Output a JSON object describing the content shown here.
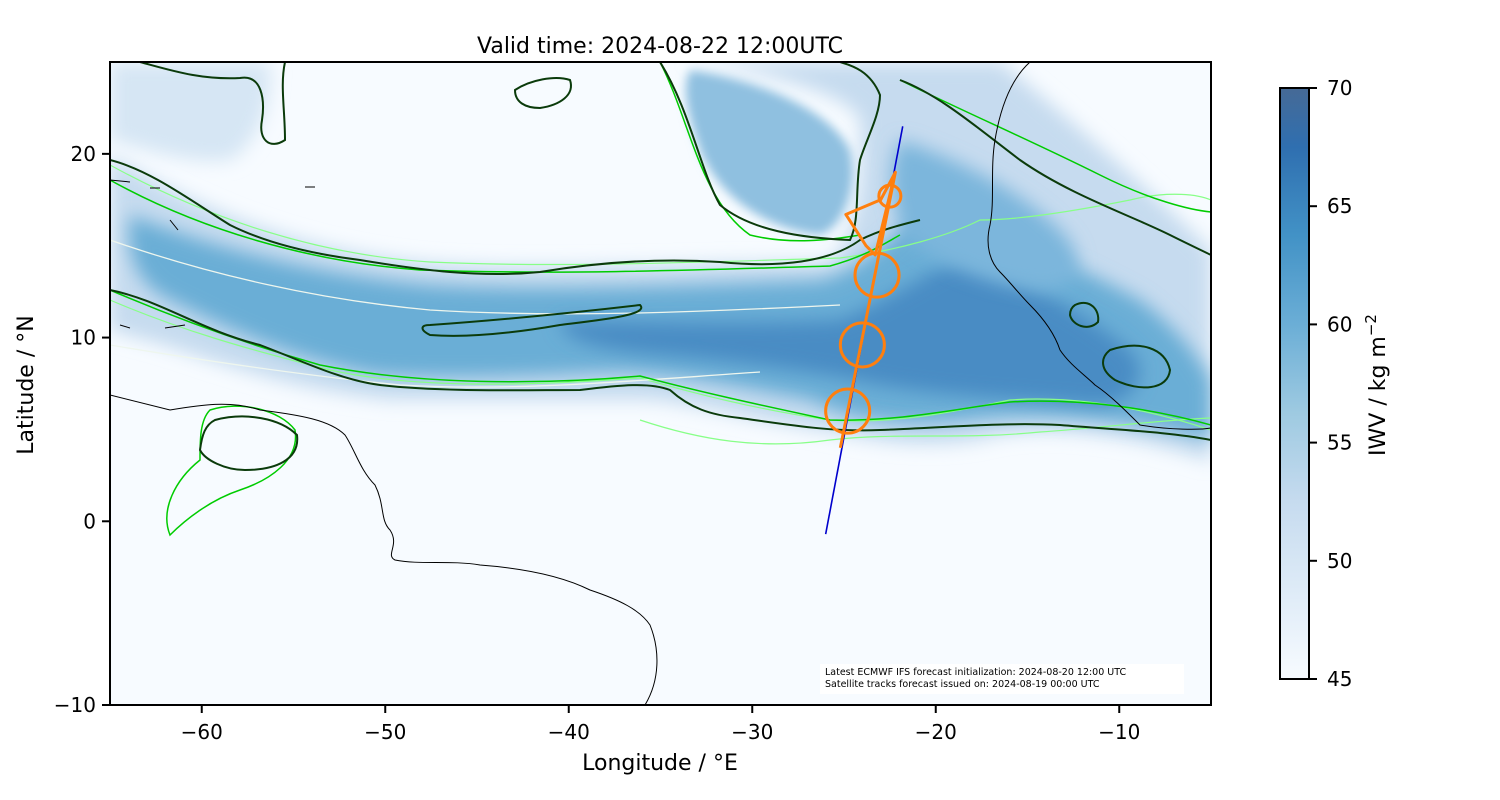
{
  "chart_data": {
    "type": "heatmap",
    "title": "Valid time: 2024-08-22 12:00UTC",
    "xlabel": "Longitude / °E",
    "ylabel": "Latitude / °N",
    "xlim": [
      -65,
      -5
    ],
    "ylim": [
      -10,
      25
    ],
    "x_ticks": [
      -60,
      -50,
      -40,
      -30,
      -20,
      -10
    ],
    "y_ticks": [
      -10,
      0,
      10,
      20
    ],
    "x_tick_labels": [
      "−60",
      "−50",
      "−40",
      "−30",
      "−20",
      "−10"
    ],
    "y_tick_labels": [
      "−10",
      "0",
      "10",
      "20"
    ],
    "grid": false,
    "colorbar": {
      "label": "IWV / kg m",
      "label_exponent": "−2",
      "min": 45,
      "max": 70,
      "ticks": [
        45,
        50,
        55,
        60,
        65,
        70
      ],
      "tick_labels": [
        "45",
        "50",
        "55",
        "60",
        "65",
        "70"
      ],
      "colors": [
        "#f7fbff",
        "#deebf7",
        "#c6dbef",
        "#9ecae1",
        "#6baed6",
        "#4292c6",
        "#2171b5",
        "#08519c"
      ]
    },
    "moisture_band": {
      "centerline": [
        [
          -65,
          17
        ],
        [
          -60,
          15
        ],
        [
          -55,
          13.5
        ],
        [
          -50,
          12.5
        ],
        [
          -45,
          11.5
        ],
        [
          -40,
          11
        ],
        [
          -35,
          10.5
        ],
        [
          -30,
          10
        ],
        [
          -25,
          10
        ],
        [
          -20,
          10.5
        ],
        [
          -15,
          10
        ],
        [
          -10,
          10
        ],
        [
          -5,
          9.5
        ]
      ],
      "peak_iwv": 62
    },
    "flight_track": {
      "color": "#0000cc",
      "points": [
        [
          -26,
          -0.7
        ],
        [
          -21.8,
          21.5
        ]
      ]
    },
    "satellite_track": {
      "color": "#ff7f0e",
      "points": [
        [
          -25.2,
          4
        ],
        [
          -22.2,
          19
        ],
        [
          -23,
          17.5
        ],
        [
          -24.9,
          16.7
        ],
        [
          -23.8,
          15
        ],
        [
          -23.3,
          14.5
        ],
        [
          -22.2,
          19
        ]
      ],
      "circles": [
        {
          "lon": -24.8,
          "lat": 6,
          "r_deg": 1.2
        },
        {
          "lon": -24.0,
          "lat": 9.6,
          "r_deg": 1.2
        },
        {
          "lon": -23.2,
          "lat": 13.4,
          "r_deg": 1.2
        },
        {
          "lon": -22.5,
          "lat": 17.7,
          "r_deg": 0.6
        }
      ]
    },
    "coastline_color": "#000000",
    "contour_colors": [
      "#003300",
      "#00cc00",
      "#88ff88",
      "#e0f0e0"
    ],
    "annotations": [
      "Latest ECMWF IFS forecast initialization: 2024-08-20 12:00 UTC",
      "Satellite tracks forecast issued on: 2024-08-19 00:00 UTC"
    ]
  }
}
